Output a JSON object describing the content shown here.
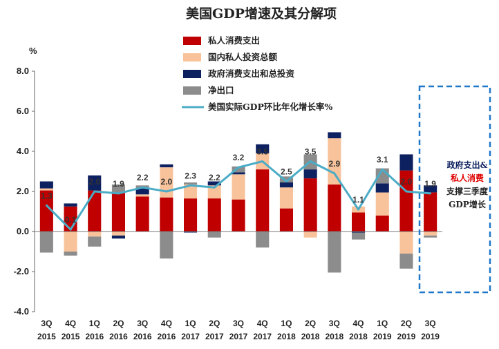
{
  "chart_data": {
    "type": "bar",
    "title": "美国GDP增速及其分解项",
    "y_unit": "%",
    "ylim": [
      -4,
      8
    ],
    "yticks": [
      "8.0",
      "6.0",
      "4.0",
      "2.0",
      "0.0",
      "-2.0",
      "-4.0"
    ],
    "ytick_values": [
      8,
      6,
      4,
      2,
      0,
      -2,
      -4
    ],
    "categories": [
      [
        "3Q",
        "2015"
      ],
      [
        "4Q",
        "2015"
      ],
      [
        "1Q",
        "2016"
      ],
      [
        "2Q",
        "2016"
      ],
      [
        "3Q",
        "2016"
      ],
      [
        "4Q",
        "2016"
      ],
      [
        "1Q",
        "2017"
      ],
      [
        "2Q",
        "2017"
      ],
      [
        "3Q",
        "2017"
      ],
      [
        "4Q",
        "2017"
      ],
      [
        "1Q",
        "2018"
      ],
      [
        "2Q",
        "2018"
      ],
      [
        "3Q",
        "2018"
      ],
      [
        "4Q",
        "2018"
      ],
      [
        "1Q",
        "2019"
      ],
      [
        "2Q",
        "2019"
      ],
      [
        "3Q",
        "2019"
      ]
    ],
    "series": [
      {
        "name": "私人消费支出",
        "kind": "bar",
        "color": "#c00000",
        "values": [
          2.05,
          1.25,
          2.05,
          1.95,
          1.75,
          1.7,
          1.65,
          1.65,
          1.6,
          3.1,
          1.15,
          2.65,
          2.35,
          0.95,
          0.8,
          3.05,
          1.95
        ]
      },
      {
        "name": "国内私人投资总额",
        "kind": "bar",
        "color": "#f8c39b",
        "values": [
          0.1,
          -1.0,
          -0.25,
          -0.2,
          0.1,
          1.5,
          0.7,
          0.65,
          1.25,
          0.8,
          1.05,
          -0.3,
          2.3,
          0.3,
          1.15,
          -1.1,
          -0.2
        ]
      },
      {
        "name": "政府消费支出和总投资",
        "kind": "bar",
        "color": "#0d2060",
        "values": [
          0.35,
          0.15,
          0.75,
          -0.15,
          0.3,
          0.15,
          -0.05,
          0.2,
          0.1,
          0.45,
          0.25,
          0.45,
          0.3,
          -0.05,
          0.45,
          0.8,
          0.35
        ]
      },
      {
        "name": "净出口",
        "kind": "bar",
        "color": "#8c8c8c",
        "values": [
          -1.05,
          -0.2,
          -0.5,
          0.4,
          0.15,
          -1.35,
          0.1,
          -0.3,
          0.3,
          -0.8,
          0.3,
          0.75,
          -2.05,
          -0.35,
          0.75,
          -0.75,
          -0.1
        ]
      },
      {
        "name": "美国实际GDP环比年化增长率%",
        "kind": "line",
        "color": "#4bacc6",
        "values": [
          1.3,
          0.1,
          2.0,
          1.9,
          2.2,
          2.0,
          2.3,
          2.2,
          3.2,
          3.5,
          2.5,
          3.5,
          2.9,
          1.1,
          3.1,
          2.0,
          1.9
        ],
        "labels": [
          "1.3",
          "0.1",
          "2.0",
          "1.9",
          "2.2",
          "2.0",
          "2.3",
          "2.2",
          "3.2",
          "3.5",
          "2.5",
          "3.5",
          "2.9",
          "1.1",
          "3.1",
          "2.0",
          "1.9"
        ]
      }
    ],
    "legend_position": "top-center",
    "grid": false,
    "annotation": {
      "lines": [
        {
          "text": "政府支出&",
          "color": "#0d2060"
        },
        {
          "text": "私人消费",
          "color": "#e00000"
        },
        {
          "text": "支撑三季度",
          "color": "#222222"
        },
        {
          "text": "GDP增长",
          "color": "#222222"
        }
      ],
      "box_color": "#1f77c8"
    }
  }
}
